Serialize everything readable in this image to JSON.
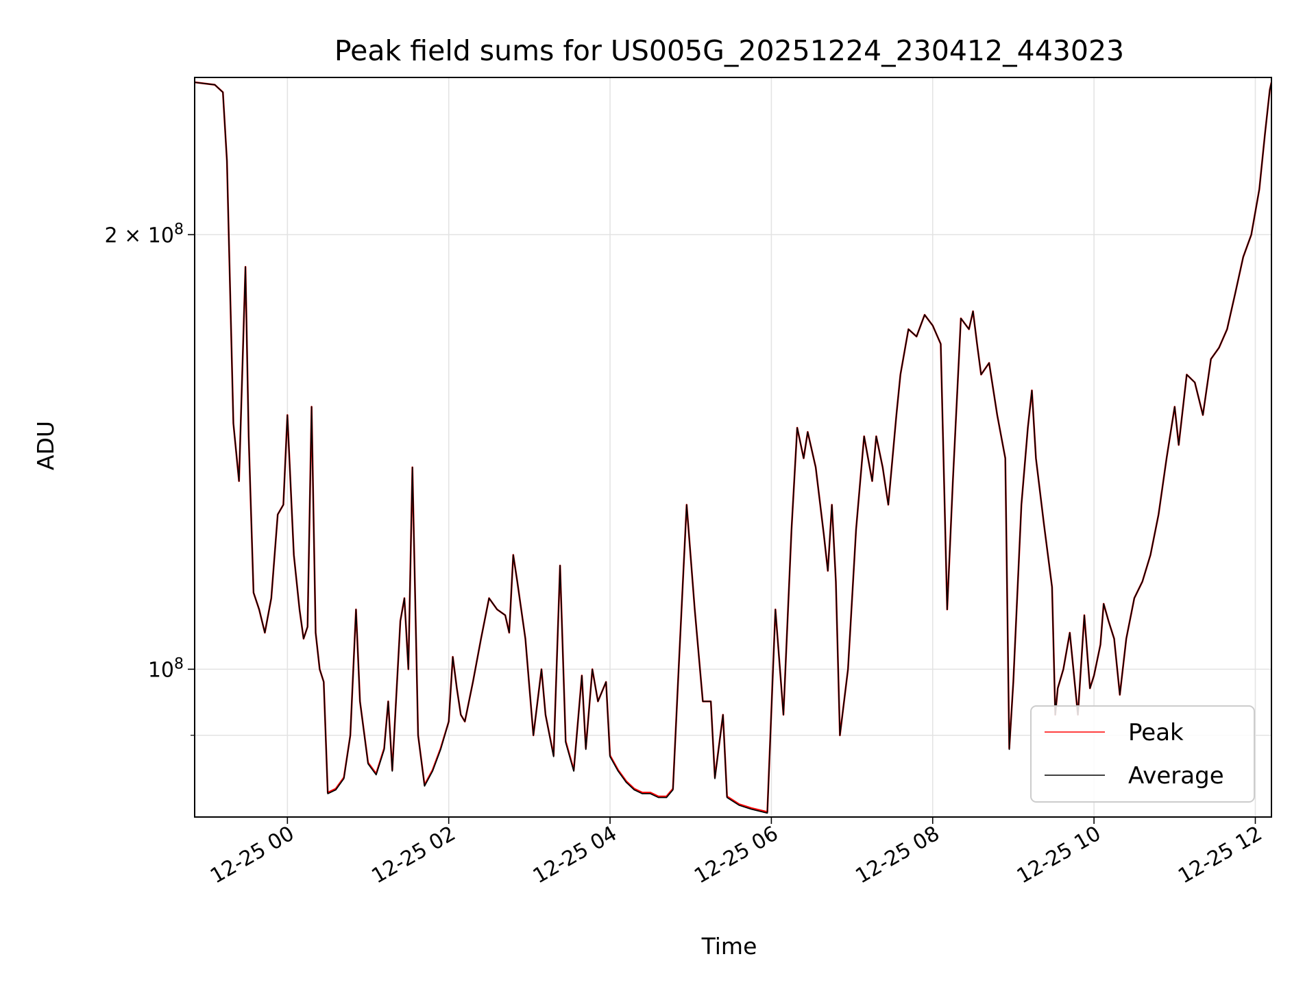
{
  "chart_data": {
    "type": "line",
    "title": "Peak field sums for US005G_20251224_230412_443023",
    "xlabel": "Time",
    "ylabel": "ADU",
    "yscale": "log",
    "x_unit": "hours since 2025-12-24 00:00",
    "xlim": [
      22.85,
      36.2
    ],
    "ylim": [
      79000000,
      257000000
    ],
    "x_ticks": [
      {
        "value": 24,
        "label": "12-25 00"
      },
      {
        "value": 26,
        "label": "12-25 02"
      },
      {
        "value": 28,
        "label": "12-25 04"
      },
      {
        "value": 30,
        "label": "12-25 06"
      },
      {
        "value": 32,
        "label": "12-25 08"
      },
      {
        "value": 34,
        "label": "12-25 10"
      },
      {
        "value": 36,
        "label": "12-25 12"
      }
    ],
    "y_major_ticks": [
      {
        "value": 100000000,
        "label": "10",
        "exp": "8"
      },
      {
        "value": 200000000,
        "label": "2 × 10",
        "exp": "8"
      }
    ],
    "y_minor_ticks": [
      90000000
    ],
    "grid": true,
    "legend": {
      "position": "lower right",
      "entries": [
        {
          "label": "Peak",
          "color": "#ff0000"
        },
        {
          "label": "Average",
          "color": "#000000"
        }
      ]
    },
    "series": [
      {
        "name": "Average",
        "color": "#000000",
        "points": [
          [
            22.85,
            255000000
          ],
          [
            23.1,
            254000000
          ],
          [
            23.2,
            251000000
          ],
          [
            23.25,
            225000000
          ],
          [
            23.33,
            148000000
          ],
          [
            23.4,
            135000000
          ],
          [
            23.48,
            190000000
          ],
          [
            23.52,
            145000000
          ],
          [
            23.58,
            113000000
          ],
          [
            23.65,
            110000000
          ],
          [
            23.72,
            106000000
          ],
          [
            23.8,
            112000000
          ],
          [
            23.88,
            128000000
          ],
          [
            23.95,
            130000000
          ],
          [
            24.0,
            150000000
          ],
          [
            24.08,
            120000000
          ],
          [
            24.15,
            110000000
          ],
          [
            24.2,
            105000000
          ],
          [
            24.25,
            107000000
          ],
          [
            24.3,
            152000000
          ],
          [
            24.35,
            106000000
          ],
          [
            24.4,
            100000000
          ],
          [
            24.45,
            98000000
          ],
          [
            24.5,
            82000000
          ],
          [
            24.6,
            82500000
          ],
          [
            24.7,
            84000000
          ],
          [
            24.78,
            90000000
          ],
          [
            24.85,
            110000000
          ],
          [
            24.9,
            95000000
          ],
          [
            25.0,
            86000000
          ],
          [
            25.1,
            84500000
          ],
          [
            25.2,
            88000000
          ],
          [
            25.25,
            95000000
          ],
          [
            25.3,
            85000000
          ],
          [
            25.4,
            108000000
          ],
          [
            25.45,
            112000000
          ],
          [
            25.5,
            100000000
          ],
          [
            25.55,
            138000000
          ],
          [
            25.62,
            90000000
          ],
          [
            25.7,
            83000000
          ],
          [
            25.8,
            85000000
          ],
          [
            25.9,
            88000000
          ],
          [
            26.0,
            92000000
          ],
          [
            26.05,
            102000000
          ],
          [
            26.1,
            97000000
          ],
          [
            26.15,
            93000000
          ],
          [
            26.2,
            92000000
          ],
          [
            26.3,
            98000000
          ],
          [
            26.4,
            105000000
          ],
          [
            26.5,
            112000000
          ],
          [
            26.6,
            110000000
          ],
          [
            26.7,
            109000000
          ],
          [
            26.75,
            106000000
          ],
          [
            26.8,
            120000000
          ],
          [
            26.85,
            115000000
          ],
          [
            26.95,
            105000000
          ],
          [
            27.05,
            90000000
          ],
          [
            27.15,
            100000000
          ],
          [
            27.2,
            93000000
          ],
          [
            27.3,
            87000000
          ],
          [
            27.38,
            118000000
          ],
          [
            27.45,
            89000000
          ],
          [
            27.55,
            85000000
          ],
          [
            27.65,
            99000000
          ],
          [
            27.7,
            88000000
          ],
          [
            27.78,
            100000000
          ],
          [
            27.85,
            95000000
          ],
          [
            27.95,
            98000000
          ],
          [
            28.0,
            87000000
          ],
          [
            28.1,
            85000000
          ],
          [
            28.2,
            83500000
          ],
          [
            28.3,
            82500000
          ],
          [
            28.4,
            82000000
          ],
          [
            28.5,
            82000000
          ],
          [
            28.6,
            81500000
          ],
          [
            28.7,
            81500000
          ],
          [
            28.78,
            82500000
          ],
          [
            28.85,
            100000000
          ],
          [
            28.95,
            130000000
          ],
          [
            29.05,
            110000000
          ],
          [
            29.15,
            95000000
          ],
          [
            29.25,
            95000000
          ],
          [
            29.3,
            84000000
          ],
          [
            29.4,
            93000000
          ],
          [
            29.45,
            81500000
          ],
          [
            29.6,
            80500000
          ],
          [
            29.75,
            80000000
          ],
          [
            29.95,
            79500000
          ],
          [
            30.05,
            110000000
          ],
          [
            30.15,
            93000000
          ],
          [
            30.25,
            125000000
          ],
          [
            30.32,
            147000000
          ],
          [
            30.4,
            140000000
          ],
          [
            30.45,
            146000000
          ],
          [
            30.55,
            138000000
          ],
          [
            30.65,
            124000000
          ],
          [
            30.7,
            117000000
          ],
          [
            30.75,
            130000000
          ],
          [
            30.8,
            115000000
          ],
          [
            30.85,
            90000000
          ],
          [
            30.95,
            100000000
          ],
          [
            31.05,
            125000000
          ],
          [
            31.15,
            145000000
          ],
          [
            31.25,
            135000000
          ],
          [
            31.3,
            145000000
          ],
          [
            31.38,
            138000000
          ],
          [
            31.45,
            130000000
          ],
          [
            31.55,
            150000000
          ],
          [
            31.6,
            160000000
          ],
          [
            31.7,
            172000000
          ],
          [
            31.8,
            170000000
          ],
          [
            31.9,
            176000000
          ],
          [
            32.0,
            173000000
          ],
          [
            32.1,
            168000000
          ],
          [
            32.18,
            110000000
          ],
          [
            32.25,
            135000000
          ],
          [
            32.35,
            175000000
          ],
          [
            32.45,
            172000000
          ],
          [
            32.5,
            177000000
          ],
          [
            32.55,
            168000000
          ],
          [
            32.6,
            160000000
          ],
          [
            32.7,
            163000000
          ],
          [
            32.8,
            150000000
          ],
          [
            32.9,
            140000000
          ],
          [
            32.95,
            88000000
          ],
          [
            33.0,
            98000000
          ],
          [
            33.1,
            130000000
          ],
          [
            33.18,
            147000000
          ],
          [
            33.23,
            156000000
          ],
          [
            33.28,
            140000000
          ],
          [
            33.38,
            126000000
          ],
          [
            33.48,
            114000000
          ],
          [
            33.52,
            93000000
          ],
          [
            33.55,
            97000000
          ],
          [
            33.62,
            100000000
          ],
          [
            33.7,
            106000000
          ],
          [
            33.8,
            93000000
          ],
          [
            33.88,
            109000000
          ],
          [
            33.95,
            97000000
          ],
          [
            34.0,
            99000000
          ],
          [
            34.08,
            104000000
          ],
          [
            34.12,
            111000000
          ],
          [
            34.18,
            108000000
          ],
          [
            34.25,
            105000000
          ],
          [
            34.32,
            96000000
          ],
          [
            34.4,
            105000000
          ],
          [
            34.5,
            112000000
          ],
          [
            34.6,
            115000000
          ],
          [
            34.7,
            120000000
          ],
          [
            34.8,
            128000000
          ],
          [
            34.9,
            140000000
          ],
          [
            35.0,
            152000000
          ],
          [
            35.05,
            143000000
          ],
          [
            35.15,
            160000000
          ],
          [
            35.25,
            158000000
          ],
          [
            35.35,
            150000000
          ],
          [
            35.45,
            164000000
          ],
          [
            35.55,
            167000000
          ],
          [
            35.65,
            172000000
          ],
          [
            35.75,
            182000000
          ],
          [
            35.85,
            193000000
          ],
          [
            35.95,
            200000000
          ],
          [
            36.05,
            215000000
          ],
          [
            36.12,
            235000000
          ],
          [
            36.18,
            252000000
          ],
          [
            36.2,
            255000000
          ]
        ]
      }
    ]
  }
}
